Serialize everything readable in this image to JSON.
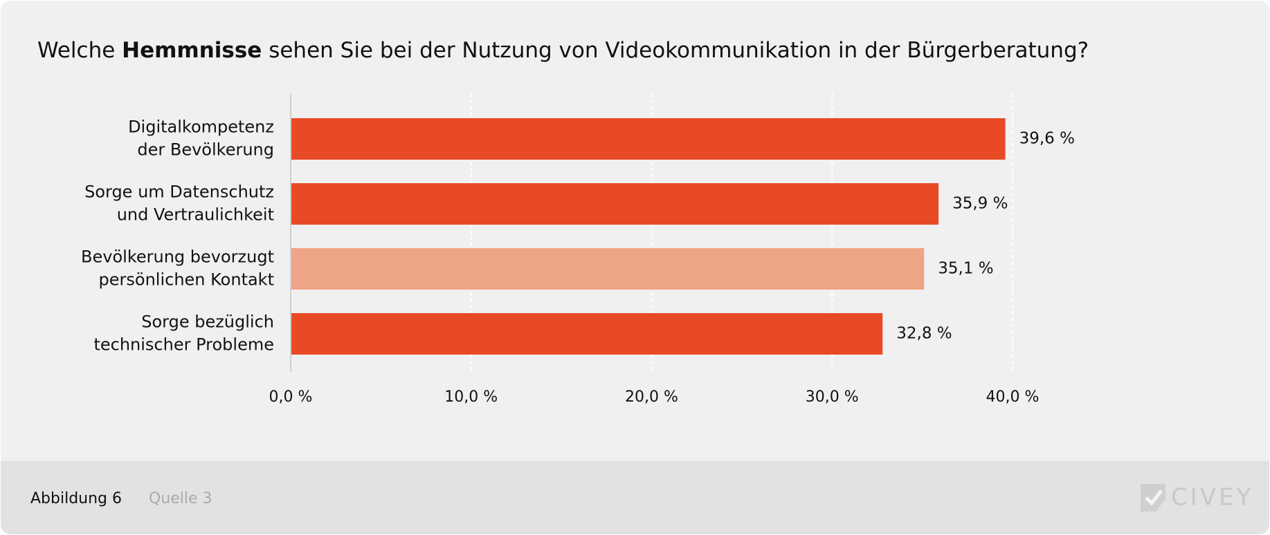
{
  "chart_data": {
    "type": "bar",
    "orientation": "horizontal",
    "title_parts": [
      "Welche ",
      "Hemmnisse",
      " sehen Sie bei der Nutzung von Videokommunikation in der Bürgerberatung?"
    ],
    "categories": [
      "Digitalkompetenz\nder Bevölkerung",
      "Sorge um Datenschutz\nund Vertraulichkeit",
      "Bevölkerung bevorzugt\npersönlichen Kontakt",
      "Sorge bezüglich\ntechnischer Probleme"
    ],
    "values": [
      39.6,
      35.9,
      35.1,
      32.8
    ],
    "value_labels": [
      "39,6 %",
      "35,9 %",
      "35,1 %",
      "32,8 %"
    ],
    "colors": [
      "#e84a25",
      "#e84a25",
      "#eea486",
      "#e84a25"
    ],
    "xlim": [
      0,
      40
    ],
    "xticks": [
      {
        "value": 0,
        "label": "0,0 %"
      },
      {
        "value": 10,
        "label": "10,0 %"
      },
      {
        "value": 20,
        "label": "20,0 %"
      },
      {
        "value": 30,
        "label": "30,0 %"
      },
      {
        "value": 40,
        "label": "40,0 %"
      }
    ],
    "grid": true
  },
  "footer": {
    "figure": "Abbildung 6",
    "source": "Quelle 3",
    "logo": "CIVEY"
  }
}
